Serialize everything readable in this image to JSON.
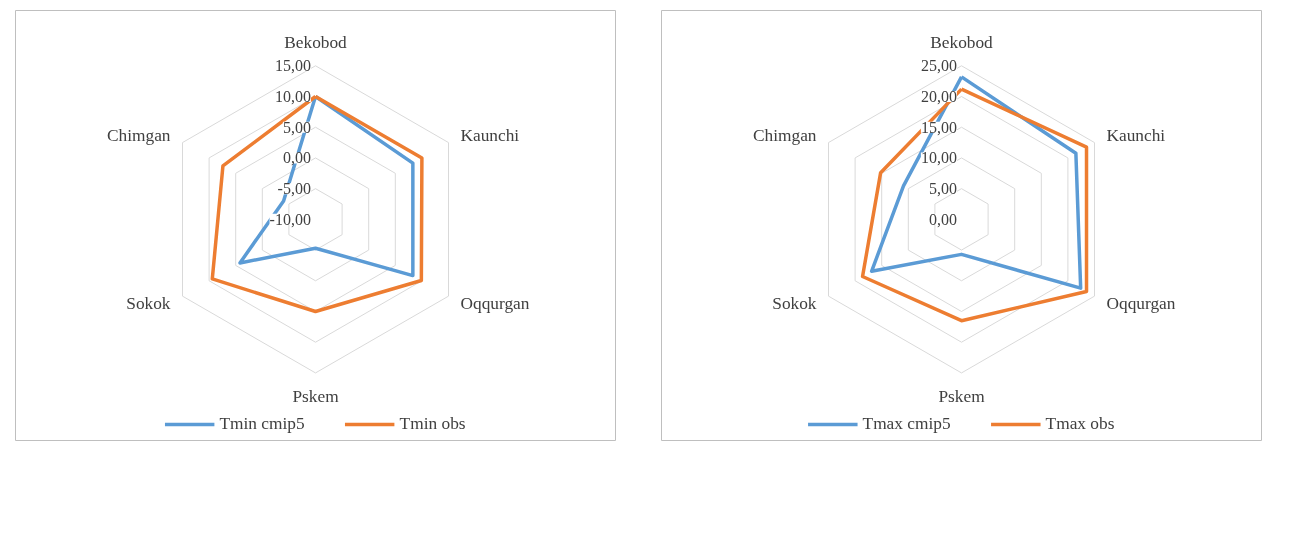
{
  "chart_data": [
    {
      "type": "radar",
      "categories": [
        "Bekobod",
        "Kaunchi",
        "Oqqurgan",
        "Pskem",
        "Sokok",
        "Chimgan"
      ],
      "ylim": [
        -10,
        15
      ],
      "yticks": [
        {
          "value": -10,
          "label": "-10,00"
        },
        {
          "value": -5,
          "label": "-5,00"
        },
        {
          "value": 0,
          "label": "0,00"
        },
        {
          "value": 5,
          "label": "5,00"
        },
        {
          "value": 10,
          "label": "10,00"
        },
        {
          "value": 15,
          "label": "15,00"
        }
      ],
      "grid": true,
      "legend": "bottom",
      "line_style": "solid",
      "marker": "none",
      "series": [
        {
          "name": "Tmin cmip5",
          "color": "#5b9bd5",
          "values": [
            10.0,
            8.3,
            8.3,
            -5.3,
            4.2,
            -4.0
          ]
        },
        {
          "name": "Tmin obs",
          "color": "#ed7d31",
          "values": [
            10.0,
            10.0,
            9.9,
            5.0,
            9.4,
            7.4
          ]
        }
      ]
    },
    {
      "type": "radar",
      "categories": [
        "Bekobod",
        "Kaunchi",
        "Oqqurgan",
        "Pskem",
        "Sokok",
        "Chimgan"
      ],
      "ylim": [
        0,
        25
      ],
      "yticks": [
        {
          "value": 0,
          "label": "0,00"
        },
        {
          "value": 5,
          "label": "5,00"
        },
        {
          "value": 10,
          "label": "10,00"
        },
        {
          "value": 15,
          "label": "15,00"
        },
        {
          "value": 20,
          "label": "20,00"
        },
        {
          "value": 25,
          "label": "25,00"
        }
      ],
      "grid": true,
      "legend": "bottom",
      "line_style": "solid",
      "marker": "none",
      "series": [
        {
          "name": "Tmax cmip5",
          "color": "#5b9bd5",
          "values": [
            23.2,
            21.5,
            22.4,
            5.7,
            16.9,
            10.9
          ]
        },
        {
          "name": "Tmax obs",
          "color": "#ed7d31",
          "values": [
            21.2,
            23.5,
            23.5,
            16.5,
            18.6,
            15.2
          ]
        }
      ]
    }
  ]
}
